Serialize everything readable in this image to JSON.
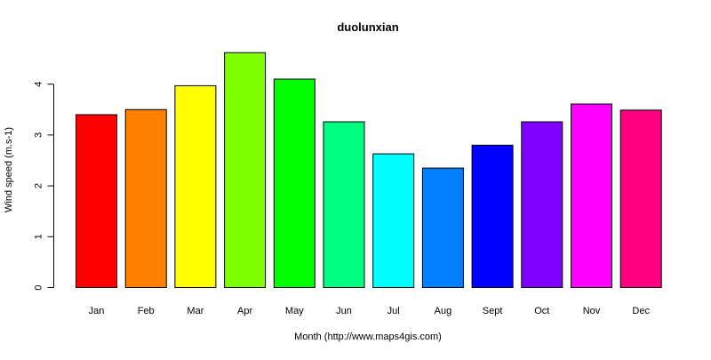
{
  "chart_data": {
    "type": "bar",
    "title": "duolunxian",
    "xlabel": "Month (http://www.maps4gis.com)",
    "ylabel": "Wind speed (m.s-1)",
    "categories": [
      "Jan",
      "Feb",
      "Mar",
      "Apr",
      "May",
      "Jun",
      "Jul",
      "Aug",
      "Sept",
      "Oct",
      "Nov",
      "Dec"
    ],
    "values": [
      3.4,
      3.5,
      3.97,
      4.62,
      4.1,
      3.26,
      2.63,
      2.35,
      2.8,
      3.26,
      3.61,
      3.49
    ],
    "colors": [
      "#FF0000",
      "#FF8000",
      "#FFFF00",
      "#80FF00",
      "#00FF00",
      "#00FF80",
      "#00FFFF",
      "#0080FF",
      "#0000FF",
      "#8000FF",
      "#FF00FF",
      "#FF0080"
    ],
    "y_ticks": [
      0,
      1,
      2,
      3,
      4
    ],
    "ylim": [
      0,
      4.62
    ],
    "grid": false,
    "legend": "none"
  }
}
